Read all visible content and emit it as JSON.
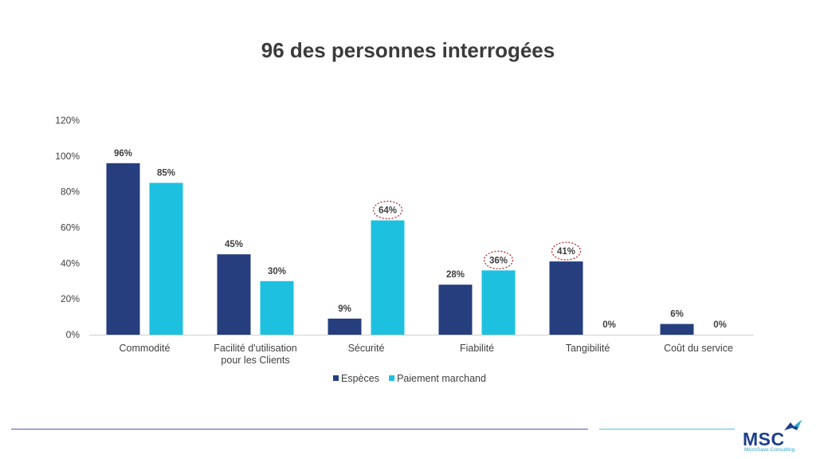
{
  "title": "96 des personnes interrogées",
  "chart_data": {
    "type": "bar",
    "title": "96 des personnes interrogées",
    "categories": [
      "Commodité",
      "Facilité d'utilisation pour les Clients",
      "Sécurité",
      "Fiabilité",
      "Tangibilité",
      "Coût du service"
    ],
    "category_lines": [
      [
        "Commodité"
      ],
      [
        "Facilité d'utilisation",
        "pour les Clients"
      ],
      [
        "Sécurité"
      ],
      [
        "Fiabilité"
      ],
      [
        "Tangibilité"
      ],
      [
        "Coût du service"
      ]
    ],
    "series": [
      {
        "name": "Espèces",
        "color": "#263e7e",
        "values": [
          96,
          45,
          9,
          28,
          41,
          6
        ]
      },
      {
        "name": "Paiement marchand",
        "color": "#1ec0e0",
        "values": [
          85,
          30,
          64,
          36,
          0,
          0
        ]
      }
    ],
    "yticks": [
      "0%",
      "20%",
      "40%",
      "60%",
      "80%",
      "100%",
      "120%"
    ],
    "ylim": [
      0,
      120
    ],
    "value_suffix": "%",
    "highlighted": [
      {
        "series": 1,
        "category": 2
      },
      {
        "series": 1,
        "category": 3
      },
      {
        "series": 0,
        "category": 4
      }
    ],
    "highlight_color": "#c0282d",
    "legend_position": "bottom",
    "grid": false
  },
  "logo": {
    "text": "MSC",
    "subtext": "MicroSave Consulting",
    "color": "#1e3f8c",
    "accent": "#2aa9d2"
  }
}
